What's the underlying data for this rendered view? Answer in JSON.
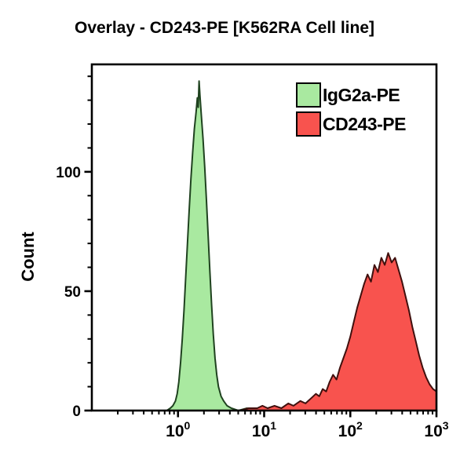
{
  "title": "Overlay - CD243-PE [K562RA Cell line]",
  "chart_data": {
    "type": "area",
    "subtype": "flow-cytometry-histogram-overlay",
    "title": "Overlay - CD243-PE [K562RA Cell line]",
    "xlabel": "",
    "ylabel": "Count",
    "x_scale": "log10",
    "x_range_log10": [
      -1,
      3
    ],
    "x_tick_base": "10",
    "x_tick_exponents": [
      0,
      1,
      2,
      3
    ],
    "y_range": [
      0,
      145
    ],
    "y_major_ticks": [
      0,
      50,
      100
    ],
    "y_minor_tick_step": 10,
    "grid": false,
    "legend_position": "top-right-inside",
    "axis_color": "#000000",
    "background_color": "#ffffff",
    "series": [
      {
        "name": "IgG2a-PE",
        "fill": "#a9e9a0",
        "stroke": "#1f421f",
        "peak_count": 138,
        "points_log10x_count": [
          [
            -0.13,
            0
          ],
          [
            -0.09,
            1
          ],
          [
            -0.06,
            2
          ],
          [
            -0.03,
            4
          ],
          [
            -0.01,
            7
          ],
          [
            0.01,
            12
          ],
          [
            0.03,
            20
          ],
          [
            0.05,
            30
          ],
          [
            0.07,
            42
          ],
          [
            0.09,
            56
          ],
          [
            0.11,
            70
          ],
          [
            0.13,
            84
          ],
          [
            0.15,
            97
          ],
          [
            0.17,
            108
          ],
          [
            0.19,
            118
          ],
          [
            0.21,
            125
          ],
          [
            0.225,
            131
          ],
          [
            0.235,
            127
          ],
          [
            0.245,
            138
          ],
          [
            0.255,
            132
          ],
          [
            0.27,
            124
          ],
          [
            0.29,
            114
          ],
          [
            0.31,
            102
          ],
          [
            0.33,
            88
          ],
          [
            0.35,
            73
          ],
          [
            0.37,
            58
          ],
          [
            0.39,
            44
          ],
          [
            0.41,
            32
          ],
          [
            0.43,
            22
          ],
          [
            0.45,
            15
          ],
          [
            0.47,
            10
          ],
          [
            0.5,
            6
          ],
          [
            0.53,
            4
          ],
          [
            0.57,
            2
          ],
          [
            0.62,
            1
          ],
          [
            0.7,
            0
          ],
          [
            0.8,
            1
          ],
          [
            0.9,
            0
          ]
        ]
      },
      {
        "name": "CD243-PE",
        "fill": "#f8534e",
        "stroke": "#40100e",
        "peak_count": 66,
        "points_log10x_count": [
          [
            0.72,
            0
          ],
          [
            0.82,
            1
          ],
          [
            0.92,
            1
          ],
          [
            0.98,
            2
          ],
          [
            1.04,
            1
          ],
          [
            1.12,
            2
          ],
          [
            1.2,
            1
          ],
          [
            1.28,
            3
          ],
          [
            1.34,
            2
          ],
          [
            1.42,
            4
          ],
          [
            1.48,
            3
          ],
          [
            1.54,
            5
          ],
          [
            1.6,
            7
          ],
          [
            1.64,
            6
          ],
          [
            1.68,
            9
          ],
          [
            1.72,
            8
          ],
          [
            1.76,
            12
          ],
          [
            1.8,
            15
          ],
          [
            1.84,
            13
          ],
          [
            1.88,
            18
          ],
          [
            1.92,
            22
          ],
          [
            1.96,
            26
          ],
          [
            2.0,
            31
          ],
          [
            2.04,
            37
          ],
          [
            2.08,
            43
          ],
          [
            2.12,
            48
          ],
          [
            2.16,
            53
          ],
          [
            2.2,
            57
          ],
          [
            2.24,
            54
          ],
          [
            2.28,
            61
          ],
          [
            2.32,
            58
          ],
          [
            2.36,
            64
          ],
          [
            2.4,
            61
          ],
          [
            2.44,
            66
          ],
          [
            2.48,
            62
          ],
          [
            2.52,
            64
          ],
          [
            2.56,
            59
          ],
          [
            2.6,
            54
          ],
          [
            2.64,
            48
          ],
          [
            2.68,
            42
          ],
          [
            2.72,
            35
          ],
          [
            2.76,
            29
          ],
          [
            2.8,
            23
          ],
          [
            2.84,
            18
          ],
          [
            2.88,
            14
          ],
          [
            2.92,
            11
          ],
          [
            2.96,
            9
          ],
          [
            3.0,
            8
          ]
        ]
      }
    ]
  }
}
